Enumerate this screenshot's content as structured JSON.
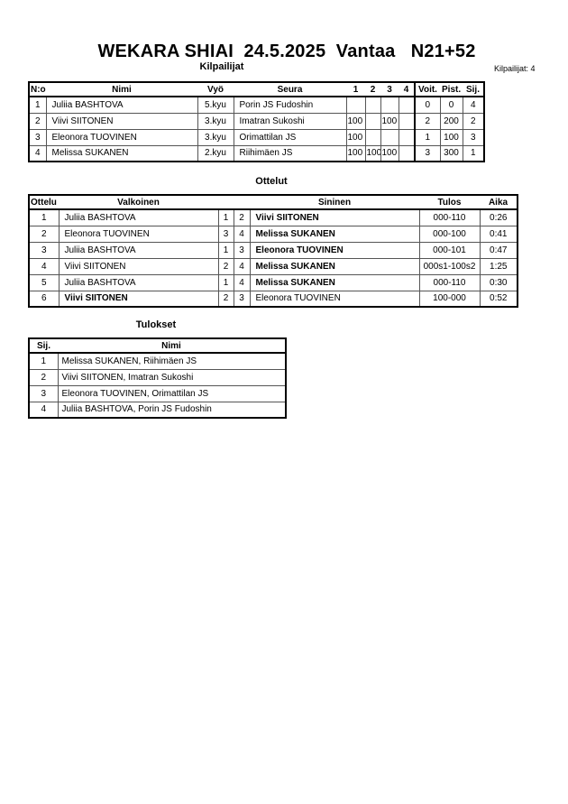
{
  "header": {
    "title": "WEKARA SHIAI  24.5.2025  Vantaa   N21+52",
    "competitors_count": "Kilpailijat: 4"
  },
  "kilpailijat": {
    "title": "Kilpailijat",
    "columns": [
      "N:o",
      "Nimi",
      "Vyö",
      "Seura",
      "1",
      "2",
      "3",
      "4",
      "Voit.",
      "Pist.",
      "Sij."
    ],
    "rows": [
      [
        "1",
        "Juliia BASHTOVA",
        "5.kyu",
        "Porin JS Fudoshin",
        "",
        "",
        "",
        "",
        "0",
        "0",
        "4"
      ],
      [
        "2",
        "Viivi SIITONEN",
        "3.kyu",
        "Imatran Sukoshi",
        "100",
        "",
        "100",
        "",
        "2",
        "200",
        "2"
      ],
      [
        "3",
        "Eleonora TUOVINEN",
        "3.kyu",
        "Orimattilan JS",
        "100",
        "",
        "",
        "",
        "1",
        "100",
        "3"
      ],
      [
        "4",
        "Melissa SUKANEN",
        "2.kyu",
        "Riihimäen JS",
        "100",
        "100",
        "100",
        "",
        "3",
        "300",
        "1"
      ]
    ]
  },
  "ottelut": {
    "title": "Ottelut",
    "columns": [
      "Ottelu",
      "Valkoinen",
      "",
      "",
      "Sininen",
      "Tulos",
      "Aika"
    ],
    "rows": [
      {
        "no": "1",
        "white": "Juliia BASHTOVA",
        "w": "1",
        "b": "2",
        "blue": "Viivi SIITONEN",
        "result": "000-110",
        "time": "0:26",
        "winner": "blue"
      },
      {
        "no": "2",
        "white": "Eleonora TUOVINEN",
        "w": "3",
        "b": "4",
        "blue": "Melissa SUKANEN",
        "result": "000-100",
        "time": "0:41",
        "winner": "blue"
      },
      {
        "no": "3",
        "white": "Juliia BASHTOVA",
        "w": "1",
        "b": "3",
        "blue": "Eleonora TUOVINEN",
        "result": "000-101",
        "time": "0:47",
        "winner": "blue"
      },
      {
        "no": "4",
        "white": "Viivi SIITONEN",
        "w": "2",
        "b": "4",
        "blue": "Melissa SUKANEN",
        "result": "000s1-100s2",
        "time": "1:25",
        "winner": "blue"
      },
      {
        "no": "5",
        "white": "Juliia BASHTOVA",
        "w": "1",
        "b": "4",
        "blue": "Melissa SUKANEN",
        "result": "000-110",
        "time": "0:30",
        "winner": "blue"
      },
      {
        "no": "6",
        "white": "Viivi SIITONEN",
        "w": "2",
        "b": "3",
        "blue": "Eleonora TUOVINEN",
        "result": "100-000",
        "time": "0:52",
        "winner": "white"
      }
    ]
  },
  "tulokset": {
    "title": "Tulokset",
    "columns": [
      "Sij.",
      "Nimi"
    ],
    "rows": [
      [
        "1",
        "Melissa SUKANEN, Riihimäen JS"
      ],
      [
        "2",
        "Viivi SIITONEN, Imatran Sukoshi"
      ],
      [
        "3",
        "Eleonora TUOVINEN, Orimattilan JS"
      ],
      [
        "4",
        "Juliia BASHTOVA, Porin JS Fudoshin"
      ]
    ]
  }
}
